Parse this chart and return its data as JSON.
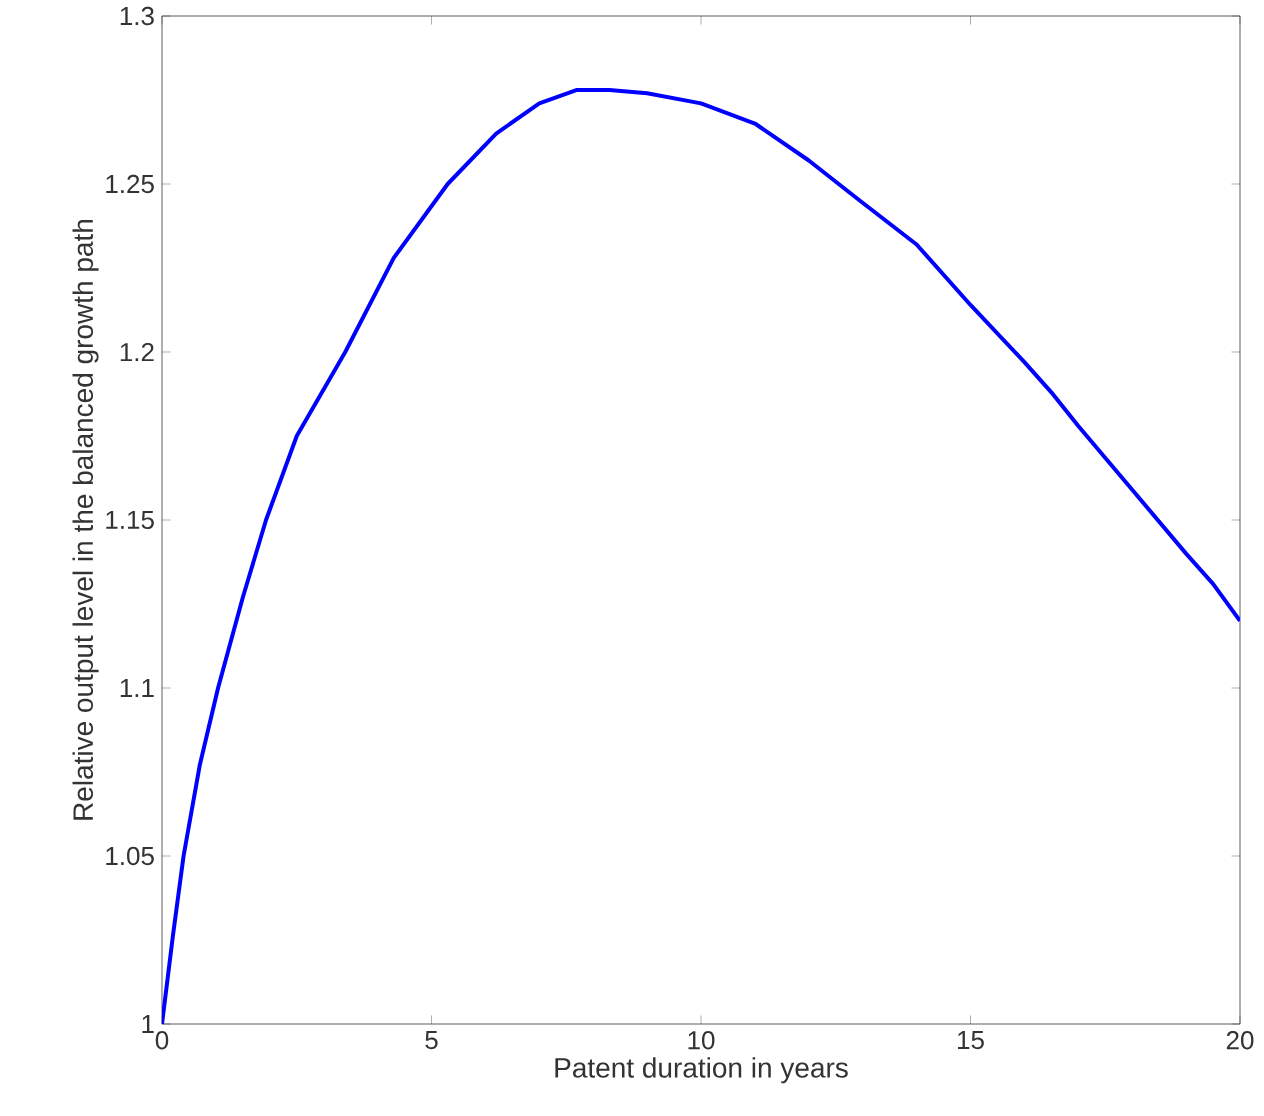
{
  "chart_data": {
    "type": "line",
    "xlabel": "Patent duration in years",
    "ylabel": "Relative output level in the balanced growth path",
    "xlim": [
      0,
      20
    ],
    "ylim": [
      1,
      1.3
    ],
    "xticks": [
      0,
      5,
      10,
      15,
      20
    ],
    "yticks": [
      1,
      1.05,
      1.1,
      1.15,
      1.2,
      1.25,
      1.3
    ],
    "grid": false,
    "marker": "none",
    "line_style": "solid",
    "series": [
      {
        "color": "#0000ff",
        "x": [
          0,
          0.2,
          0.4,
          0.7,
          1.04,
          1.5,
          1.93,
          2.5,
          3.4,
          4.3,
          5.3,
          6.2,
          7,
          7.7,
          8.3,
          9,
          10,
          11,
          12,
          12.95,
          14,
          15,
          16,
          16.5,
          17,
          18,
          19,
          19.5,
          20
        ],
        "values": [
          1,
          1.026,
          1.05,
          1.077,
          1.1,
          1.127,
          1.15,
          1.175,
          1.2,
          1.228,
          1.25,
          1.265,
          1.274,
          1.278,
          1.278,
          1.277,
          1.274,
          1.268,
          1.257,
          1.245,
          1.232,
          1.214,
          1.197,
          1.188,
          1.178,
          1.159,
          1.14,
          1.131,
          1.12
        ]
      }
    ]
  }
}
